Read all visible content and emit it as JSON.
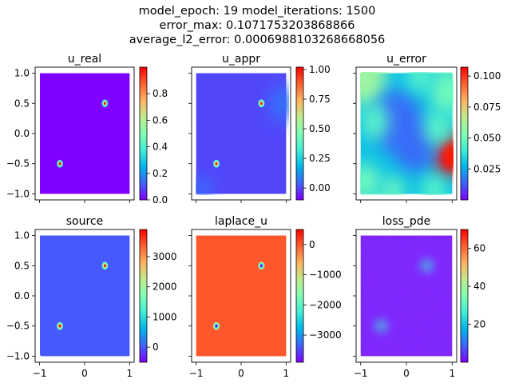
{
  "figure": {
    "title_lines": [
      "model_epoch: 19 model_iterations: 1500",
      "error_max: 0.1071753203868866",
      "average_l2_error: 0.0006988103268668056"
    ]
  },
  "chart_data": [
    {
      "type": "heatmap",
      "title": "u_real",
      "x_ticks": [],
      "y_ticks": [
        "1.0",
        "0.5",
        "0.0",
        "−0.5",
        "−1.0"
      ],
      "xlim": [
        -1.1,
        1.1
      ],
      "ylim": [
        -1.1,
        1.1
      ],
      "colorbar": {
        "min": 0.0,
        "max": 1.0,
        "ticks": [
          "0.0",
          "0.2",
          "0.4",
          "0.6",
          "0.8"
        ],
        "tick_values": [
          0,
          0.2,
          0.4,
          0.6,
          0.8
        ]
      },
      "colormap": "rainbow",
      "background_value": 0.0,
      "features": [
        {
          "type": "spot",
          "x": 0.45,
          "y": 0.5,
          "value": 1.0
        },
        {
          "type": "spot",
          "x": -0.55,
          "y": -0.5,
          "value": 1.0
        }
      ]
    },
    {
      "type": "heatmap",
      "title": "u_appr",
      "x_ticks": [],
      "y_ticks": [],
      "xlim": [
        -1.1,
        1.1
      ],
      "ylim": [
        -1.1,
        1.1
      ],
      "colorbar": {
        "min": -0.1,
        "max": 1.02,
        "ticks": [
          "1.00",
          "0.75",
          "0.50",
          "0.25",
          "0.00"
        ],
        "tick_values": [
          1.0,
          0.75,
          0.5,
          0.25,
          0.0
        ]
      },
      "colormap": "rainbow",
      "background_value": 0.0,
      "features": [
        {
          "type": "spot",
          "x": 0.45,
          "y": 0.5,
          "value": 1.0
        },
        {
          "type": "spot",
          "x": -0.55,
          "y": -0.5,
          "value": 1.0
        }
      ]
    },
    {
      "type": "heatmap",
      "title": "u_error",
      "x_ticks": [],
      "y_ticks": [],
      "xlim": [
        -1.1,
        1.1
      ],
      "ylim": [
        -1.1,
        1.1
      ],
      "colorbar": {
        "min": 0.0,
        "max": 0.1072,
        "ticks": [
          "0.100",
          "0.075",
          "0.050",
          "0.025"
        ],
        "tick_values": [
          0.1,
          0.075,
          0.05,
          0.025
        ]
      },
      "colormap": "rainbow",
      "background_value": 0.03,
      "features": [
        {
          "type": "hotspot",
          "x": 0.95,
          "y": -0.4,
          "value": 0.107
        },
        {
          "type": "hotspot",
          "x": -0.95,
          "y": 0.95,
          "value": 0.07
        },
        {
          "type": "hotspot",
          "x": 0.95,
          "y": 0.3,
          "value": 0.06
        }
      ]
    },
    {
      "type": "heatmap",
      "title": "source",
      "x_ticks": [
        "−1",
        "0",
        "1"
      ],
      "y_ticks": [
        "1.0",
        "0.5",
        "0.0",
        "−0.5",
        "−1.0"
      ],
      "xlim": [
        -1.1,
        1.1
      ],
      "ylim": [
        -1.1,
        1.1
      ],
      "colorbar": {
        "min": -500,
        "max": 3900,
        "ticks": [
          "3000",
          "2000",
          "1000",
          "0"
        ],
        "tick_values": [
          3000,
          2000,
          1000,
          0
        ]
      },
      "colormap": "rainbow",
      "background_value": 0,
      "features": [
        {
          "type": "spot",
          "x": 0.45,
          "y": 0.5,
          "value": 3900
        },
        {
          "type": "spot",
          "x": -0.55,
          "y": -0.5,
          "value": 3900
        }
      ]
    },
    {
      "type": "heatmap",
      "title": "laplace_u",
      "x_ticks": [
        "−1",
        "0",
        "1"
      ],
      "y_ticks": [],
      "xlim": [
        -1.1,
        1.1
      ],
      "ylim": [
        -1.1,
        1.1
      ],
      "colorbar": {
        "min": -3900,
        "max": 500,
        "ticks": [
          "0",
          "−1000",
          "−2000",
          "−3000"
        ],
        "tick_values": [
          0,
          -1000,
          -2000,
          -3000
        ]
      },
      "colormap": "rainbow",
      "background_value": 0,
      "features": [
        {
          "type": "spot",
          "x": 0.45,
          "y": 0.5,
          "value": -3900
        },
        {
          "type": "spot",
          "x": -0.55,
          "y": -0.5,
          "value": -3900
        }
      ]
    },
    {
      "type": "heatmap",
      "title": "loss_pde",
      "x_ticks": [
        "−1",
        "0",
        "1"
      ],
      "y_ticks": [],
      "xlim": [
        -1.1,
        1.1
      ],
      "ylim": [
        -1.1,
        1.1
      ],
      "colorbar": {
        "min": 0,
        "max": 70,
        "ticks": [
          "60",
          "40",
          "20"
        ],
        "tick_values": [
          60,
          40,
          20
        ]
      },
      "colormap": "rainbow",
      "background_value": 2,
      "features": [
        {
          "type": "spot",
          "x": 0.45,
          "y": 0.5,
          "value": 25
        },
        {
          "type": "spot",
          "x": -0.55,
          "y": -0.5,
          "value": 25
        }
      ]
    }
  ],
  "colors": {
    "rainbow_low": "#8000ff",
    "rainbow_mid": "#80ffb4",
    "rainbow_high": "#ff0000",
    "axis": "#000000"
  }
}
